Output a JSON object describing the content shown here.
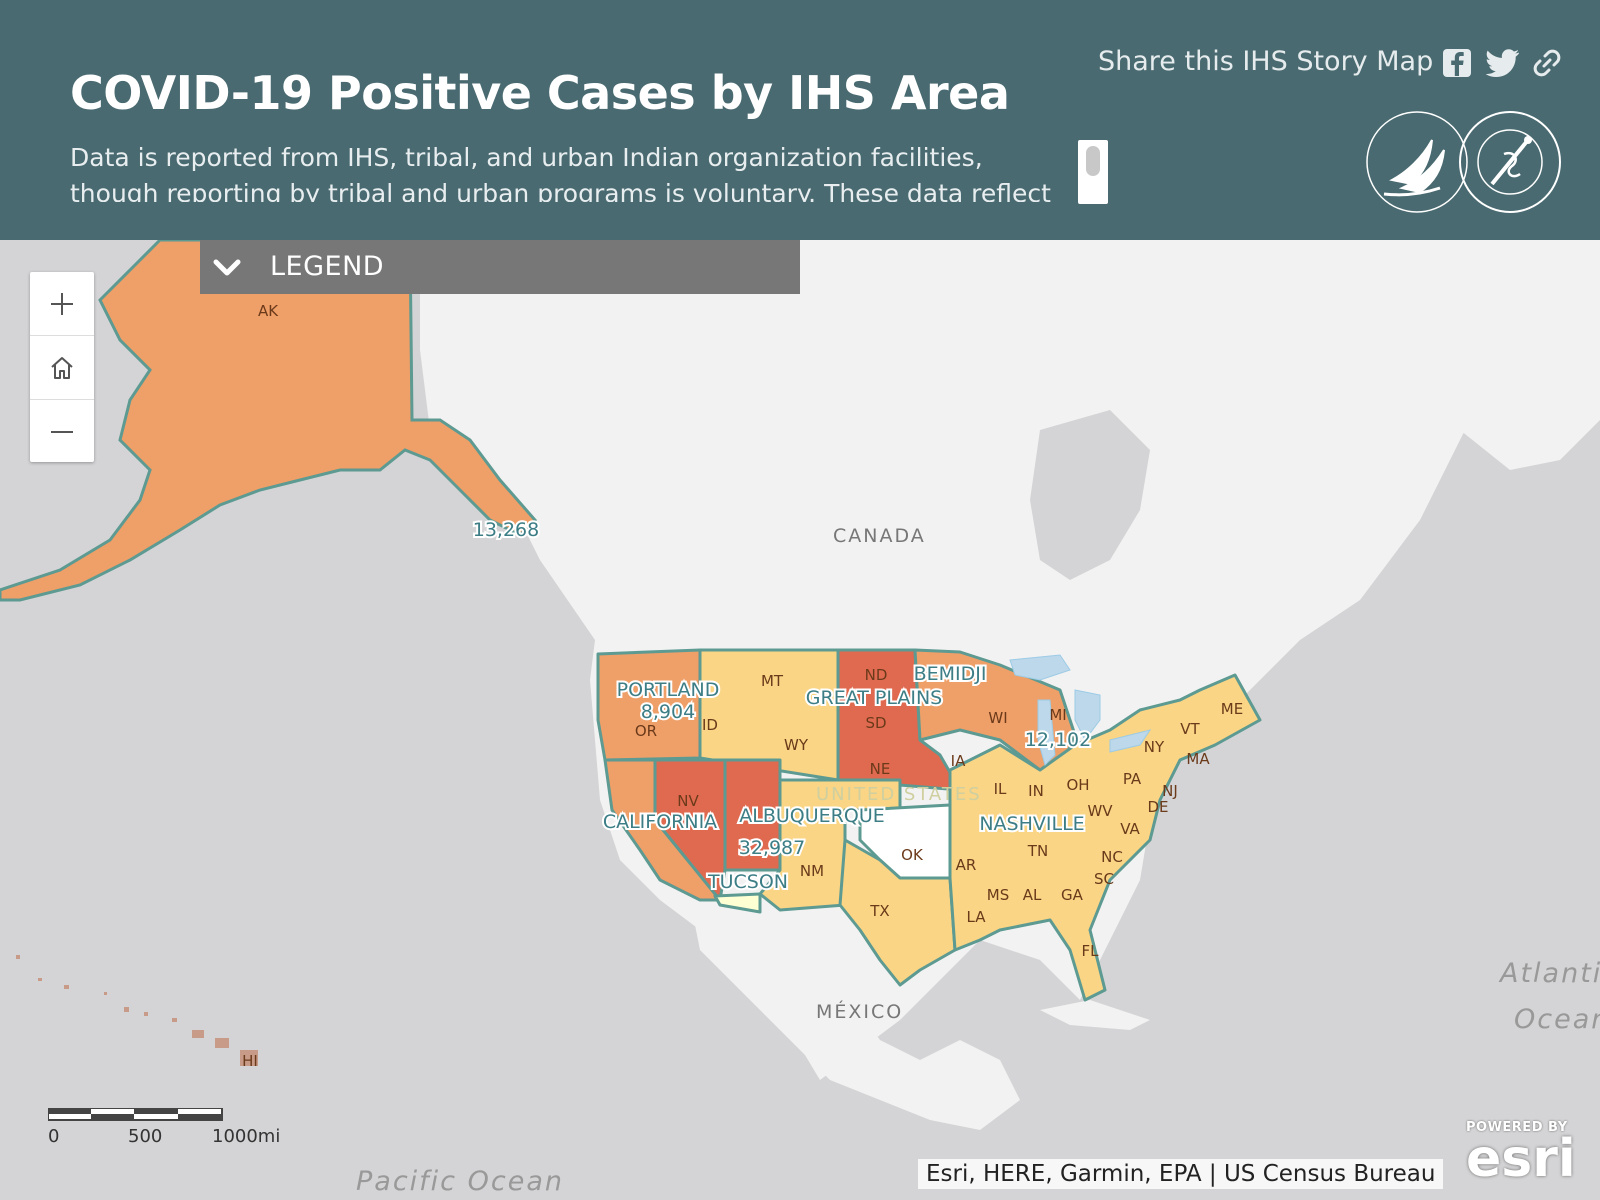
{
  "header": {
    "title": "COVID-19 Positive Cases by IHS Area",
    "description": "Data is reported from IHS, tribal, and urban Indian organization facilities, though reporting by tribal and urban programs is voluntary. These data reflect cases",
    "share_label": "Share this IHS Story Map",
    "share_icons": [
      "facebook-icon",
      "twitter-icon",
      "link-icon"
    ],
    "logos": [
      "hhs-seal",
      "indian-health-service-seal"
    ]
  },
  "legend": {
    "label": "LEGEND",
    "icon": "chevron-down-icon",
    "expanded": false
  },
  "zoom_controls": [
    "zoom-in-icon",
    "home-icon",
    "zoom-out-icon"
  ],
  "map": {
    "geo_labels": {
      "canada": "CANADA",
      "united_states": "UNITED STATES",
      "mexico": "MÉXICO",
      "pacific": "Pacific Ocean",
      "atlantic_1": "Atlanti",
      "atlantic_2": "Ocean"
    },
    "area_labels": {
      "portland": "PORTLAND",
      "portland_cases": "8,904",
      "bemidji": "BEMIDJI",
      "great_plains": "GREAT PLAINS",
      "bemidji_cases": "12,102",
      "california": "CALIFORNIA",
      "albuquerque": "ALBUQUERQUE",
      "navajo_cases": "32,987",
      "tucson": "TUCSON",
      "nashville": "NASHVILLE",
      "alaska_cases": "13,268"
    },
    "state_labels": {
      "AK": "AK",
      "HI": "HI",
      "MT": "MT",
      "ND": "ND",
      "SD": "SD",
      "NE": "NE",
      "IA": "IA",
      "WI": "WI",
      "MI": "MI",
      "OR": "OR",
      "ID": "ID",
      "WY": "WY",
      "NV": "NV",
      "NM": "NM",
      "OK": "OK",
      "TX": "TX",
      "AR": "AR",
      "LA": "LA",
      "MS": "MS",
      "AL": "AL",
      "GA": "GA",
      "FL": "FL",
      "SC": "SC",
      "NC": "NC",
      "TN": "TN",
      "VA": "VA",
      "WV": "WV",
      "OH": "OH",
      "IN": "IN",
      "IL": "IL",
      "PA": "PA",
      "NY": "NY",
      "VT": "VT",
      "MA": "MA",
      "NJ": "NJ",
      "DE": "DE",
      "ME": "ME"
    },
    "colors": {
      "highest": "#e06a50",
      "high": "#ef9f68",
      "medium": "#f9d585",
      "low": "#ffffd4",
      "none": "#ffffff",
      "outline": "#5d9a92",
      "land": "#f2f2f2",
      "water": "#d4d4d6"
    },
    "scale": {
      "labels": [
        "0",
        "500",
        "1000mi"
      ]
    },
    "attribution": "Esri, HERE, Garmin, EPA | US Census Bureau",
    "powered_by": "POWERED BY",
    "esri": "esri"
  }
}
